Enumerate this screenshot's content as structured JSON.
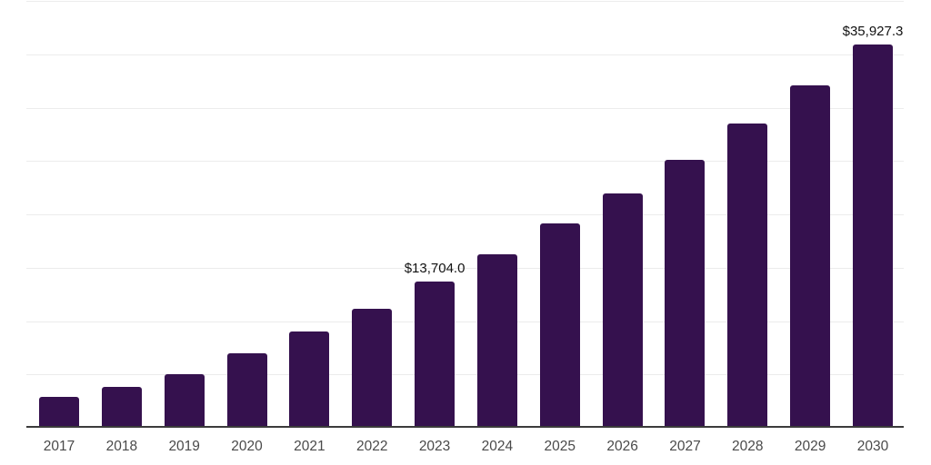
{
  "chart_data": {
    "type": "bar",
    "title": "",
    "xlabel": "",
    "ylabel": "",
    "categories": [
      "2017",
      "2018",
      "2019",
      "2020",
      "2021",
      "2022",
      "2023",
      "2024",
      "2025",
      "2026",
      "2027",
      "2028",
      "2029",
      "2030"
    ],
    "values": [
      2890,
      3830,
      5020,
      6980,
      9000,
      11150,
      13704.0,
      16260,
      19150,
      21960,
      25110,
      28520,
      32090,
      35927.3
    ],
    "data_labels": [
      null,
      null,
      null,
      null,
      null,
      null,
      "$13,704.0",
      null,
      null,
      null,
      null,
      null,
      null,
      "$35,927.3"
    ],
    "ylim": [
      0,
      40000
    ],
    "gridline_step": 5000,
    "grid": true,
    "legend_position": "none",
    "colors": {
      "bar": "#35114E",
      "axis_line": "#3B3B3B",
      "gridline": "#ECECEC",
      "x_tick_text": "#4A4A4A",
      "data_label_text": "#111111",
      "background": "#FFFFFF"
    }
  }
}
